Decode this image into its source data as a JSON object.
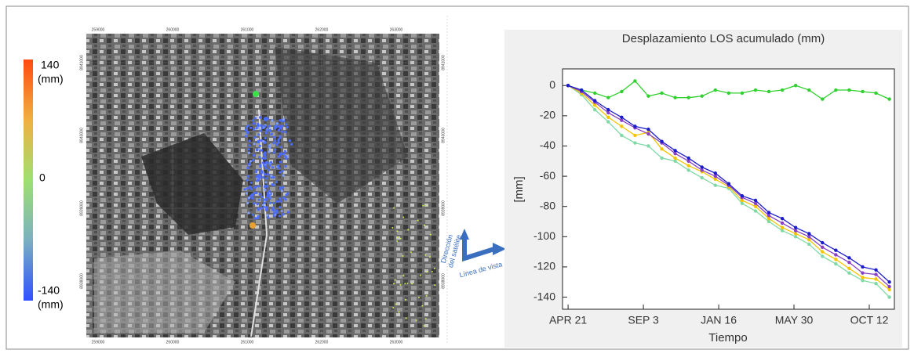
{
  "chart_data": {
    "type": "line",
    "title": "Desplazamiento LOS acumulado (mm)",
    "x_label": "Tiempo",
    "y_label": "[mm]",
    "x": [
      0,
      24,
      48,
      72,
      96,
      120,
      144,
      168,
      192,
      216,
      240,
      264,
      288,
      312,
      336,
      360,
      384,
      408,
      432,
      456,
      480,
      504,
      528,
      552,
      576
    ],
    "xlim": [
      -10,
      585
    ],
    "xticks": [
      {
        "value": 0,
        "label": "APR 21"
      },
      {
        "value": 135,
        "label": "SEP 3"
      },
      {
        "value": 270,
        "label": "JAN 16"
      },
      {
        "value": 405,
        "label": "MAY 30"
      },
      {
        "value": 540,
        "label": "OCT 12"
      }
    ],
    "ylim": [
      -148,
      11
    ],
    "yticks": [
      0,
      -20,
      -40,
      -60,
      -80,
      -100,
      -120,
      -140
    ],
    "series": [
      {
        "color": "#2fd02f",
        "values": [
          0,
          -3,
          -5,
          -8,
          -4,
          3,
          -7,
          -5,
          -8,
          -8,
          -7,
          -3,
          -5,
          -5,
          -3,
          -4,
          -3,
          0,
          -3,
          -9,
          -3,
          -3,
          -4,
          -5,
          -9
        ]
      },
      {
        "color": "#7fd9a6",
        "values": [
          0,
          -6,
          -16,
          -24,
          -33,
          -38,
          -40,
          -48,
          -50,
          -56,
          -61,
          -66,
          -68,
          -78,
          -83,
          -90,
          -96,
          -100,
          -105,
          -113,
          -118,
          -124,
          -129,
          -131,
          -140
        ]
      },
      {
        "color": "#f5c400",
        "values": [
          0,
          -5,
          -13,
          -21,
          -27,
          -33,
          -31,
          -42,
          -48,
          -53,
          -57,
          -62,
          -67,
          -76,
          -80,
          -88,
          -94,
          -98,
          -102,
          -110,
          -115,
          -121,
          -127,
          -128,
          -135
        ]
      },
      {
        "color": "#8a3fc4",
        "values": [
          0,
          -4,
          -11,
          -18,
          -23,
          -28,
          -32,
          -38,
          -45,
          -50,
          -56,
          -60,
          -66,
          -74,
          -78,
          -86,
          -91,
          -96,
          -100,
          -107,
          -112,
          -117,
          -124,
          -125,
          -133
        ]
      },
      {
        "color": "#1c1ccc",
        "values": [
          0,
          -3,
          -10,
          -16,
          -21,
          -27,
          -29,
          -37,
          -43,
          -48,
          -54,
          -58,
          -65,
          -73,
          -76,
          -84,
          -88,
          -94,
          -98,
          -104,
          -109,
          -114,
          -120,
          -122,
          -130
        ]
      }
    ]
  },
  "colorbar": {
    "max": "140",
    "max_unit": "(mm)",
    "mid": "0",
    "min": "-140",
    "min_unit": "(mm)"
  },
  "map": {
    "xticks": [
      "259000",
      "260000",
      "261000",
      "262000",
      "263000"
    ],
    "yticks": [
      "8941000",
      "8940000",
      "8939000",
      "8938000"
    ]
  },
  "geometry": {
    "direction_line1": "Dirección",
    "direction_line2": "del satélite",
    "line_of_sight": "Línea de vista"
  }
}
